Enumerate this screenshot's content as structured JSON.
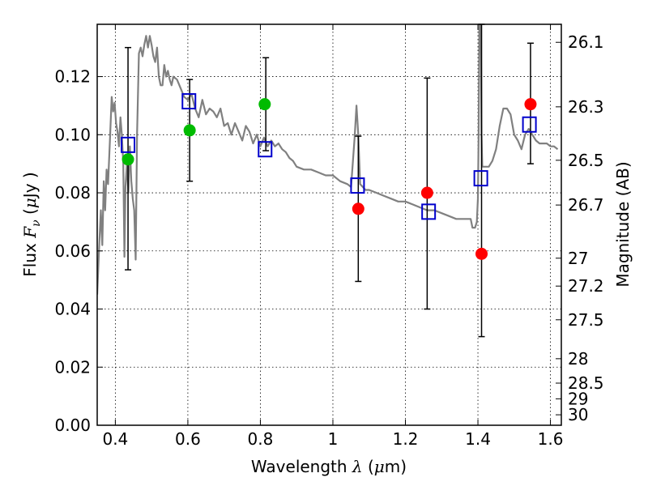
{
  "chart_data": {
    "type": "scatter",
    "xlabel_prefix": "Wavelength ",
    "xlabel_symbol": "λ",
    "xlabel_unit_open": " (",
    "xlabel_unit_mu": "μ",
    "xlabel_unit_rest": "m)",
    "ylabel_prefix": "Flux ",
    "ylabel_symbol": "F",
    "ylabel_sub": "ν",
    "ylabel_unit_open": " (",
    "ylabel_unit_mu": "μ",
    "ylabel_unit_rest": "Jy )",
    "y2label": "Magnitude (AB)",
    "xlim": [
      0.35,
      1.63
    ],
    "ylim": [
      0.0,
      0.138
    ],
    "grid": true,
    "xticks": [
      0.4,
      0.6,
      0.8,
      1.0,
      1.2,
      1.4,
      1.6
    ],
    "xtick_labels": [
      "0.4",
      "0.6",
      "0.8",
      "1",
      "1.2",
      "1.4",
      "1.6"
    ],
    "yticks": [
      0.0,
      0.02,
      0.04,
      0.06,
      0.08,
      0.1,
      0.12
    ],
    "ytick_labels": [
      "0.00",
      "0.02",
      "0.04",
      "0.06",
      "0.08",
      "0.10",
      "0.12"
    ],
    "mag_ticks": [
      {
        "label": "26.1",
        "flux": 0.1318
      },
      {
        "label": "26.3",
        "flux": 0.1096
      },
      {
        "label": "26.5",
        "flux": 0.0912
      },
      {
        "label": "26.7",
        "flux": 0.0758
      },
      {
        "label": "27",
        "flux": 0.0575
      },
      {
        "label": "27.2",
        "flux": 0.0479
      },
      {
        "label": "27.5",
        "flux": 0.0363
      },
      {
        "label": "28",
        "flux": 0.0229
      },
      {
        "label": "28.5",
        "flux": 0.0145
      },
      {
        "label": "29",
        "flux": 0.0091
      },
      {
        "label": "30",
        "flux": 0.0036
      }
    ],
    "series": [
      {
        "name": "model SED",
        "kind": "line",
        "color": "#808080",
        "points": [
          [
            0.35,
            0.045
          ],
          [
            0.355,
            0.06
          ],
          [
            0.36,
            0.074
          ],
          [
            0.364,
            0.062
          ],
          [
            0.368,
            0.084
          ],
          [
            0.372,
            0.074
          ],
          [
            0.376,
            0.088
          ],
          [
            0.38,
            0.083
          ],
          [
            0.385,
            0.098
          ],
          [
            0.39,
            0.113
          ],
          [
            0.394,
            0.108
          ],
          [
            0.398,
            0.111
          ],
          [
            0.402,
            0.104
          ],
          [
            0.406,
            0.101
          ],
          [
            0.41,
            0.096
          ],
          [
            0.414,
            0.106
          ],
          [
            0.418,
            0.1
          ],
          [
            0.422,
            0.09
          ],
          [
            0.425,
            0.058
          ],
          [
            0.428,
            0.082
          ],
          [
            0.432,
            0.09
          ],
          [
            0.436,
            0.08
          ],
          [
            0.44,
            0.096
          ],
          [
            0.444,
            0.084
          ],
          [
            0.448,
            0.078
          ],
          [
            0.452,
            0.074
          ],
          [
            0.456,
            0.057
          ],
          [
            0.46,
            0.1
          ],
          [
            0.465,
            0.128
          ],
          [
            0.47,
            0.13
          ],
          [
            0.475,
            0.127
          ],
          [
            0.48,
            0.131
          ],
          [
            0.485,
            0.134
          ],
          [
            0.49,
            0.13
          ],
          [
            0.495,
            0.134
          ],
          [
            0.5,
            0.131
          ],
          [
            0.505,
            0.127
          ],
          [
            0.51,
            0.125
          ],
          [
            0.515,
            0.13
          ],
          [
            0.52,
            0.12
          ],
          [
            0.525,
            0.117
          ],
          [
            0.53,
            0.117
          ],
          [
            0.535,
            0.124
          ],
          [
            0.54,
            0.12
          ],
          [
            0.545,
            0.122
          ],
          [
            0.55,
            0.119
          ],
          [
            0.555,
            0.117
          ],
          [
            0.56,
            0.12
          ],
          [
            0.57,
            0.119
          ],
          [
            0.58,
            0.116
          ],
          [
            0.59,
            0.113
          ],
          [
            0.6,
            0.112
          ],
          [
            0.61,
            0.114
          ],
          [
            0.62,
            0.109
          ],
          [
            0.63,
            0.106
          ],
          [
            0.64,
            0.112
          ],
          [
            0.65,
            0.107
          ],
          [
            0.66,
            0.109
          ],
          [
            0.67,
            0.108
          ],
          [
            0.68,
            0.106
          ],
          [
            0.69,
            0.109
          ],
          [
            0.7,
            0.103
          ],
          [
            0.71,
            0.104
          ],
          [
            0.72,
            0.1
          ],
          [
            0.73,
            0.104
          ],
          [
            0.74,
            0.101
          ],
          [
            0.75,
            0.098
          ],
          [
            0.76,
            0.103
          ],
          [
            0.77,
            0.101
          ],
          [
            0.78,
            0.097
          ],
          [
            0.79,
            0.1
          ],
          [
            0.8,
            0.096
          ],
          [
            0.81,
            0.099
          ],
          [
            0.82,
            0.096
          ],
          [
            0.83,
            0.098
          ],
          [
            0.84,
            0.096
          ],
          [
            0.85,
            0.097
          ],
          [
            0.86,
            0.095
          ],
          [
            0.87,
            0.094
          ],
          [
            0.88,
            0.092
          ],
          [
            0.89,
            0.091
          ],
          [
            0.9,
            0.089
          ],
          [
            0.92,
            0.088
          ],
          [
            0.94,
            0.088
          ],
          [
            0.96,
            0.087
          ],
          [
            0.98,
            0.086
          ],
          [
            1.0,
            0.086
          ],
          [
            1.02,
            0.084
          ],
          [
            1.04,
            0.083
          ],
          [
            1.05,
            0.082
          ],
          [
            1.06,
            0.099
          ],
          [
            1.065,
            0.11
          ],
          [
            1.07,
            0.1
          ],
          [
            1.075,
            0.083
          ],
          [
            1.09,
            0.081
          ],
          [
            1.1,
            0.081
          ],
          [
            1.12,
            0.08
          ],
          [
            1.14,
            0.079
          ],
          [
            1.16,
            0.078
          ],
          [
            1.18,
            0.077
          ],
          [
            1.2,
            0.077
          ],
          [
            1.22,
            0.076
          ],
          [
            1.24,
            0.075
          ],
          [
            1.26,
            0.074
          ],
          [
            1.28,
            0.074
          ],
          [
            1.3,
            0.073
          ],
          [
            1.32,
            0.072
          ],
          [
            1.34,
            0.071
          ],
          [
            1.36,
            0.071
          ],
          [
            1.38,
            0.071
          ],
          [
            1.385,
            0.068
          ],
          [
            1.392,
            0.068
          ],
          [
            1.397,
            0.07
          ],
          [
            1.4,
            0.078
          ],
          [
            1.402,
            0.1
          ],
          [
            1.404,
            0.138
          ],
          [
            1.408,
            0.138
          ],
          [
            1.41,
            0.1
          ],
          [
            1.412,
            0.089
          ],
          [
            1.42,
            0.089
          ],
          [
            1.43,
            0.089
          ],
          [
            1.44,
            0.091
          ],
          [
            1.45,
            0.095
          ],
          [
            1.46,
            0.103
          ],
          [
            1.47,
            0.109
          ],
          [
            1.48,
            0.109
          ],
          [
            1.49,
            0.107
          ],
          [
            1.5,
            0.1
          ],
          [
            1.51,
            0.098
          ],
          [
            1.52,
            0.095
          ],
          [
            1.53,
            0.1
          ],
          [
            1.54,
            0.102
          ],
          [
            1.55,
            0.1
          ],
          [
            1.56,
            0.098
          ],
          [
            1.57,
            0.097
          ],
          [
            1.58,
            0.097
          ],
          [
            1.59,
            0.097
          ],
          [
            1.6,
            0.096
          ],
          [
            1.61,
            0.096
          ],
          [
            1.62,
            0.095
          ]
        ]
      },
      {
        "name": "observed (green)",
        "kind": "point",
        "color": "#00bb00",
        "points": [
          [
            0.435,
            0.0915
          ],
          [
            0.605,
            0.1015
          ],
          [
            0.812,
            0.1105
          ]
        ]
      },
      {
        "name": "observed (red)",
        "kind": "point",
        "color": "#ff0000",
        "points": [
          [
            1.07,
            0.0745
          ],
          [
            1.26,
            0.08
          ],
          [
            1.41,
            0.059
          ],
          [
            1.545,
            0.1105
          ]
        ]
      },
      {
        "name": "model photometry",
        "kind": "open-square",
        "color": "#0000cc",
        "points": [
          [
            0.435,
            0.0965
          ],
          [
            0.603,
            0.1115
          ],
          [
            0.813,
            0.095
          ],
          [
            1.068,
            0.0825
          ],
          [
            1.264,
            0.0735
          ],
          [
            1.408,
            0.085
          ],
          [
            1.542,
            0.1035
          ]
        ]
      },
      {
        "name": "error bars",
        "kind": "errorbar",
        "color": "#000000",
        "bars": [
          {
            "x": 0.435,
            "low": 0.0535,
            "high": 0.13
          },
          {
            "x": 0.605,
            "low": 0.084,
            "high": 0.119
          },
          {
            "x": 0.815,
            "low": 0.0945,
            "high": 0.1265
          },
          {
            "x": 1.07,
            "low": 0.0495,
            "high": 0.0995
          },
          {
            "x": 1.26,
            "low": 0.04,
            "high": 0.1195
          },
          {
            "x": 1.41,
            "low": 0.0305,
            "high": 0.138
          },
          {
            "x": 1.545,
            "low": 0.09,
            "high": 0.1315
          }
        ]
      }
    ]
  }
}
